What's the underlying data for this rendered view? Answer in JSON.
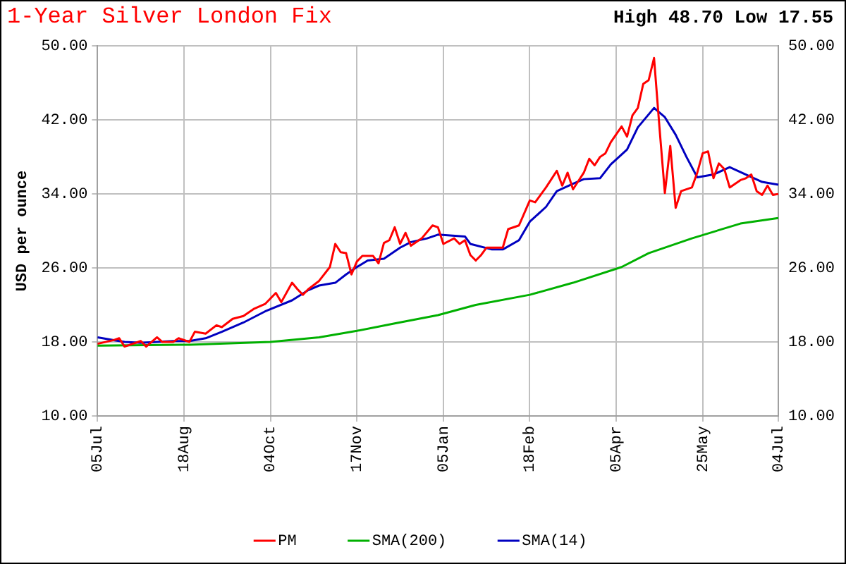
{
  "chart_data": {
    "type": "line",
    "title": "1-Year Silver London Fix",
    "subtitle": "High 48.70 Low 17.55",
    "ylabel": "USD per ounce",
    "categories": [
      "05Jul",
      null,
      null,
      null,
      null,
      null,
      null,
      null,
      null,
      null,
      null,
      null,
      null,
      null,
      null,
      null,
      "18Aug",
      null,
      null,
      null,
      null,
      null,
      null,
      null,
      null,
      null,
      null,
      null,
      null,
      null,
      null,
      null,
      "04Oct",
      null,
      null,
      null,
      null,
      null,
      null,
      null,
      null,
      null,
      null,
      null,
      null,
      null,
      null,
      null,
      "17Nov",
      null,
      null,
      null,
      null,
      null,
      null,
      null,
      null,
      null,
      null,
      null,
      null,
      null,
      null,
      null,
      "05Jan",
      null,
      null,
      null,
      null,
      null,
      null,
      null,
      null,
      null,
      null,
      null,
      null,
      null,
      null,
      null,
      "18Feb",
      null,
      null,
      null,
      null,
      null,
      null,
      null,
      null,
      null,
      null,
      null,
      null,
      null,
      null,
      null,
      "05Apr",
      null,
      null,
      null,
      null,
      null,
      null,
      null,
      null,
      null,
      null,
      null,
      null,
      null,
      null,
      null,
      "25May",
      null,
      null,
      null,
      null,
      null,
      null,
      null,
      null,
      null,
      null,
      null,
      null,
      null,
      "04Jul"
    ],
    "ylim": [
      10,
      50
    ],
    "yticks": [
      {
        "value": 10,
        "label": "10.00"
      },
      {
        "value": 18,
        "label": "18.00"
      },
      {
        "value": 26,
        "label": "26.00"
      },
      {
        "value": 34,
        "label": "34.00"
      },
      {
        "value": 42,
        "label": "42.00"
      },
      {
        "value": 50,
        "label": "50.00"
      }
    ],
    "y2lim": [
      10,
      50
    ],
    "y2ticks": [
      {
        "value": 10,
        "label": "10.00"
      },
      {
        "value": 18,
        "label": "18.00"
      },
      {
        "value": 26,
        "label": "26.00"
      },
      {
        "value": 34,
        "label": "34.00"
      },
      {
        "value": 42,
        "label": "42.00"
      },
      {
        "value": 50,
        "label": "50.00"
      }
    ],
    "grid": true,
    "legend": "bottom",
    "marker": "none",
    "line_style": "solid",
    "series": [
      {
        "name": "PM",
        "color": "#ff0000",
        "values": [
          17.8,
          null,
          null,
          18.2,
          18.4,
          17.5,
          null,
          null,
          18.1,
          17.5,
          null,
          18.5,
          18.0,
          null,
          18.0,
          18.4,
          null,
          18.0,
          19.1,
          null,
          18.9,
          null,
          19.8,
          19.6,
          null,
          20.5,
          null,
          20.8,
          null,
          21.6,
          null,
          22.1,
          null,
          23.3,
          22.3,
          null,
          24.4,
          23.7,
          23.1,
          23.7,
          null,
          24.6,
          null,
          26.1,
          28.6,
          27.7,
          27.6,
          25.3,
          26.7,
          27.3,
          null,
          27.3,
          26.5,
          28.7,
          29.0,
          30.4,
          28.6,
          29.8,
          28.4,
          null,
          29.2,
          null,
          30.6,
          30.4,
          28.6,
          null,
          29.2,
          28.6,
          29.0,
          27.4,
          26.8,
          27.4,
          28.2,
          null,
          null,
          28.2,
          30.2,
          null,
          30.6,
          null,
          33.3,
          33.1,
          null,
          34.7,
          null,
          36.5,
          34.9,
          36.3,
          34.5,
          null,
          36.3,
          37.8,
          37.1,
          38.0,
          38.4,
          39.6,
          null,
          41.3,
          40.2,
          42.5,
          43.3,
          45.9,
          46.3,
          48.7,
          41.2,
          34.1,
          39.2,
          32.5,
          34.3,
          null,
          34.7,
          36.3,
          38.4,
          38.6,
          35.7,
          37.3,
          36.7,
          34.7,
          null,
          35.5,
          35.7,
          36.1,
          34.3,
          33.9,
          34.9,
          33.9,
          34.0
        ]
      },
      {
        "name": "SMA(200)",
        "color": "#00b000",
        "values": [
          17.6,
          null,
          null,
          null,
          null,
          null,
          null,
          null,
          null,
          null,
          null,
          null,
          null,
          null,
          null,
          null,
          null,
          17.7,
          null,
          null,
          null,
          null,
          null,
          null,
          null,
          null,
          null,
          null,
          null,
          null,
          null,
          null,
          18.0,
          null,
          null,
          null,
          null,
          null,
          null,
          null,
          null,
          18.5,
          null,
          null,
          null,
          null,
          null,
          null,
          19.2,
          null,
          null,
          null,
          null,
          null,
          null,
          20.0,
          null,
          null,
          null,
          null,
          null,
          null,
          null,
          20.9,
          null,
          null,
          null,
          null,
          null,
          null,
          22.0,
          null,
          null,
          null,
          null,
          null,
          null,
          null,
          null,
          null,
          23.1,
          null,
          null,
          null,
          null,
          null,
          null,
          null,
          24.4,
          null,
          null,
          null,
          null,
          null,
          null,
          null,
          null,
          26.1,
          null,
          null,
          null,
          null,
          27.6,
          null,
          null,
          null,
          null,
          null,
          null,
          null,
          29.2,
          null,
          null,
          null,
          null,
          null,
          null,
          null,
          null,
          30.8,
          null,
          null,
          null,
          null,
          null,
          null,
          31.4
        ]
      },
      {
        "name": "SMA(14)",
        "color": "#0000c0",
        "values": [
          18.5,
          null,
          null,
          18.2,
          null,
          18.0,
          null,
          null,
          17.9,
          null,
          null,
          18.0,
          null,
          null,
          18.1,
          null,
          null,
          18.1,
          null,
          null,
          18.4,
          null,
          null,
          19.1,
          null,
          null,
          null,
          20.1,
          null,
          null,
          null,
          21.3,
          null,
          null,
          null,
          null,
          22.5,
          null,
          null,
          23.6,
          null,
          24.1,
          null,
          null,
          24.4,
          null,
          25.3,
          null,
          26.1,
          null,
          26.8,
          null,
          null,
          27.0,
          null,
          null,
          28.2,
          null,
          28.8,
          null,
          null,
          29.2,
          null,
          29.6,
          null,
          null,
          null,
          null,
          29.4,
          28.6,
          null,
          null,
          null,
          28.0,
          null,
          28.0,
          null,
          null,
          29.0,
          null,
          31.0,
          null,
          null,
          32.6,
          null,
          34.3,
          null,
          null,
          35.1,
          null,
          35.6,
          null,
          null,
          35.7,
          null,
          37.2,
          null,
          null,
          38.8,
          null,
          41.2,
          null,
          null,
          43.3,
          null,
          42.3,
          null,
          40.4,
          null,
          38.0,
          null,
          35.8,
          null,
          null,
          36.1,
          null,
          null,
          36.9,
          null,
          null,
          36.1,
          null,
          null,
          35.3,
          null,
          null,
          35.0
        ]
      }
    ]
  }
}
